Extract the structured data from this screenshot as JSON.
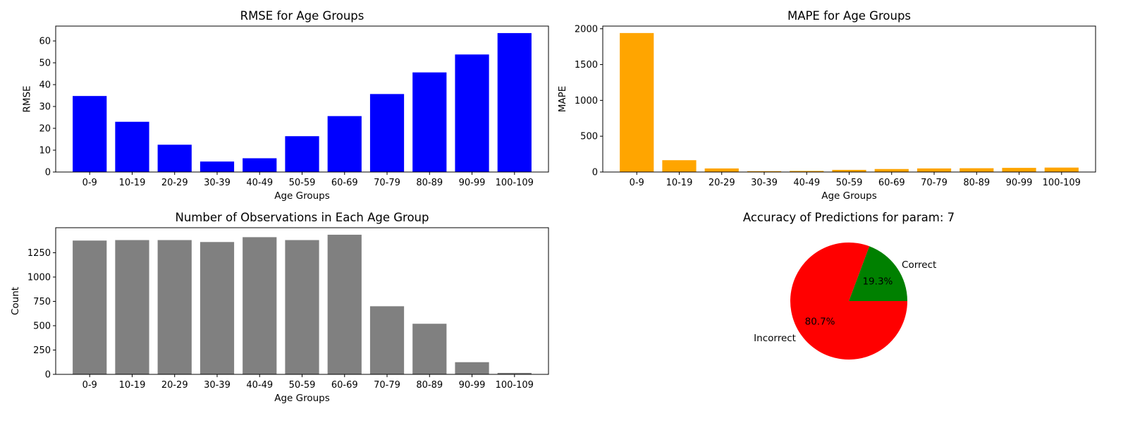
{
  "chart_data": [
    {
      "type": "bar",
      "title": "RMSE for Age Groups",
      "xlabel": "Age Groups",
      "ylabel": "RMSE",
      "categories": [
        "0-9",
        "10-19",
        "20-29",
        "30-39",
        "40-49",
        "50-59",
        "60-69",
        "70-79",
        "80-89",
        "90-99",
        "100-109"
      ],
      "values": [
        34.8,
        23.0,
        12.5,
        4.8,
        6.3,
        16.4,
        25.6,
        35.7,
        45.6,
        53.8,
        63.6
      ],
      "ylim": [
        0,
        66.8
      ],
      "yticks": [
        0,
        10,
        20,
        30,
        40,
        50,
        60
      ],
      "color": "#0000ff",
      "grid": false
    },
    {
      "type": "bar",
      "title": "MAPE for Age Groups",
      "xlabel": "Age Groups",
      "ylabel": "MAPE",
      "categories": [
        "0-9",
        "10-19",
        "20-29",
        "30-39",
        "40-49",
        "50-59",
        "60-69",
        "70-79",
        "80-89",
        "90-99",
        "100-109"
      ],
      "values": [
        1940,
        165,
        50,
        12,
        15,
        30,
        42,
        50,
        53,
        58,
        62
      ],
      "ylim": [
        0,
        2037
      ],
      "yticks": [
        0,
        500,
        1000,
        1500,
        2000
      ],
      "color": "#ffa500",
      "grid": false
    },
    {
      "type": "bar",
      "title": "Number of Observations in Each Age Group",
      "xlabel": "Age Groups",
      "ylabel": "Count",
      "categories": [
        "0-9",
        "10-19",
        "20-29",
        "30-39",
        "40-49",
        "50-59",
        "60-69",
        "70-79",
        "80-89",
        "90-99",
        "100-109"
      ],
      "values": [
        1375,
        1380,
        1380,
        1360,
        1410,
        1380,
        1435,
        700,
        520,
        125,
        15
      ],
      "ylim": [
        0,
        1507
      ],
      "yticks": [
        0,
        250,
        500,
        750,
        1000,
        1250
      ],
      "color": "#808080",
      "grid": false
    },
    {
      "type": "pie",
      "title": "Accuracy of Predictions for param: 7",
      "labels": [
        "Correct",
        "Incorrect"
      ],
      "values": [
        19.3,
        80.7
      ],
      "pct_labels": [
        "19.3%",
        "80.7%"
      ],
      "colors": [
        "#008000",
        "#ff0000"
      ]
    }
  ]
}
